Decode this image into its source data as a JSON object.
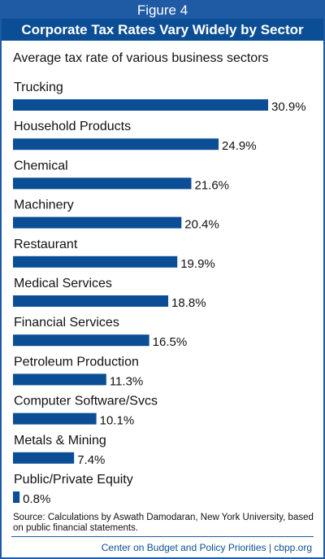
{
  "figure_label": "Figure 4",
  "title": "Corporate Tax Rates Vary Widely by Sector",
  "subtitle": "Average tax rate of various business sectors",
  "source": "Source: Calculations by Aswath Damodaran, New York University, based on public financial statements.",
  "credit": "Center on Budget and Policy Priorities | cbpp.org",
  "colors": {
    "bar": "#0b4e95",
    "header_top": "#1f5aa5",
    "header_bottom": "#0b4e95"
  },
  "chart_data": {
    "type": "bar",
    "orientation": "horizontal",
    "title": "Corporate Tax Rates Vary Widely by Sector",
    "subtitle": "Average tax rate of various business sectors",
    "categories": [
      "Trucking",
      "Household Products",
      "Chemical",
      "Machinery",
      "Restaurant",
      "Medical Services",
      "Financial Services",
      "Petroleum Production",
      "Computer Software/Svcs",
      "Metals & Mining",
      "Public/Private Equity"
    ],
    "values": [
      30.9,
      24.9,
      21.6,
      20.4,
      19.9,
      18.8,
      16.5,
      11.3,
      10.1,
      7.4,
      0.8
    ],
    "value_labels": [
      "30.9%",
      "24.9%",
      "21.6%",
      "20.4%",
      "19.9%",
      "18.8%",
      "16.5%",
      "11.3%",
      "10.1%",
      "7.4%",
      "0.8%"
    ],
    "unit": "%",
    "grid": false,
    "legend": "none"
  }
}
